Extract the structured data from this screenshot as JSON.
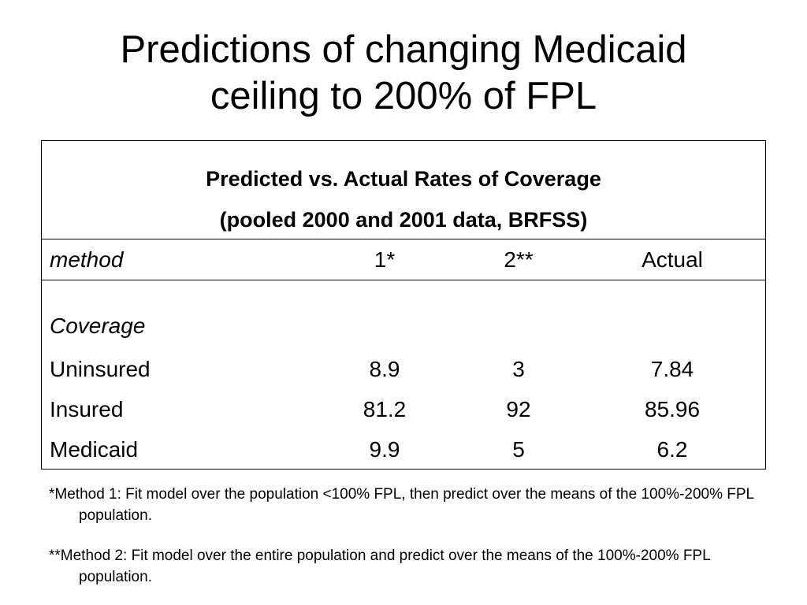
{
  "slide": {
    "title_line1": "Predictions of changing Medicaid",
    "title_line2": "ceiling to 200% of FPL"
  },
  "table": {
    "caption_line1": "Predicted vs. Actual Rates of Coverage",
    "caption_line2": "(pooled 2000 and 2001 data, BRFSS)",
    "headers": {
      "label": "method",
      "col1": "1*",
      "col2": "2**",
      "col3": "Actual"
    },
    "section_label": "Coverage",
    "rows": [
      {
        "label": "Uninsured",
        "col1": "8.9",
        "col2": "3",
        "col3": "7.84"
      },
      {
        "label": "Insured",
        "col1": "81.2",
        "col2": "92",
        "col3": "85.96"
      },
      {
        "label": "Medicaid",
        "col1": "9.9",
        "col2": "5",
        "col3": "6.2"
      }
    ]
  },
  "footnotes": {
    "note1": "*Method 1:  Fit model over the population <100% FPL, then predict over the means of the 100%-200% FPL population.",
    "note2": "**Method 2:  Fit model over the entire population and predict over the means of the 100%-200% FPL population."
  }
}
